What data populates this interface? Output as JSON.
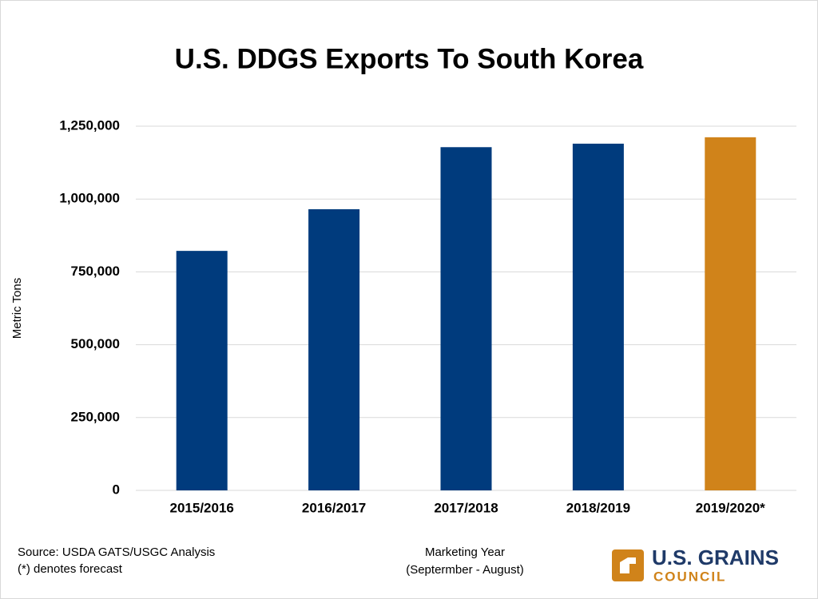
{
  "chart_data": {
    "type": "bar",
    "title": "U.S. DDGS Exports To South Korea",
    "categories": [
      "2015/2016",
      "2016/2017",
      "2017/2018",
      "2018/2019",
      "2019/2020*"
    ],
    "values": [
      822000,
      965000,
      1178000,
      1190000,
      1212000
    ],
    "colors": [
      "#003b7d",
      "#003b7d",
      "#003b7d",
      "#003b7d",
      "#d0831a"
    ],
    "ylim": [
      0,
      1250000
    ],
    "yticks": [
      0,
      {
        "value": 250000,
        "label": "250,000"
      },
      {
        "value": 500000,
        "label": "500,000"
      },
      {
        "value": 750000,
        "label": "750,000"
      },
      {
        "value": 1000000,
        "label": "1,000,000"
      },
      {
        "value": 1250000,
        "label": "1,250,000"
      }
    ],
    "grid": true,
    "y_label": "Metric Tons",
    "x_label": [
      "Marketing Year",
      "(Septermber - August)"
    ],
    "source": [
      "Source: USDA GATS/USGC Analysis",
      "(*) denotes forecast"
    ],
    "logo": [
      "U.S. GRAINS",
      "COUNCIL"
    ]
  }
}
